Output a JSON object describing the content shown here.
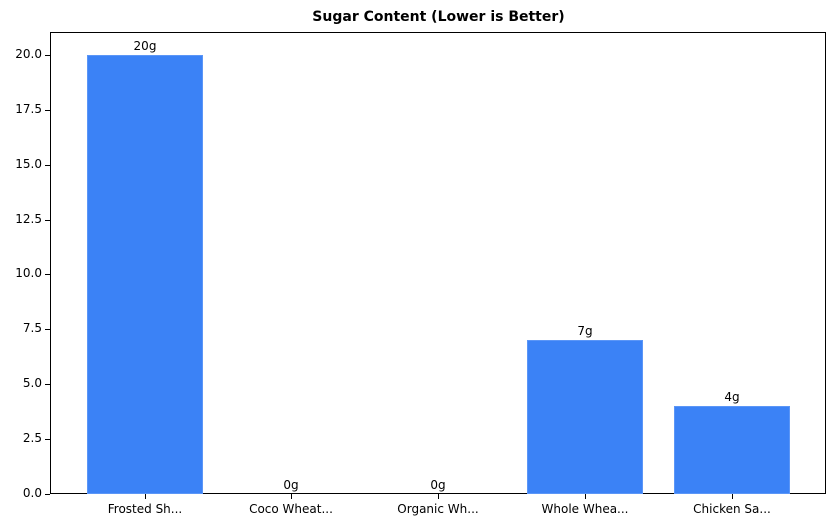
{
  "chart_data": {
    "type": "bar",
    "title": "Sugar Content (Lower is Better)",
    "xlabel": "",
    "ylabel": "",
    "categories": [
      "Frosted Sh...",
      "Coco Wheat...",
      "Organic Wh...",
      "Whole Whea...",
      "Chicken Sa..."
    ],
    "values": [
      20,
      0,
      0,
      7,
      4
    ],
    "bar_labels": [
      "20g",
      "0g",
      "0g",
      "7g",
      "4g"
    ],
    "ylim": [
      0,
      21
    ],
    "yticks": [
      "0.0",
      "2.5",
      "5.0",
      "7.5",
      "10.0",
      "12.5",
      "15.0",
      "17.5",
      "20.0"
    ],
    "grid": false,
    "bar_color": "#3b82f6"
  }
}
